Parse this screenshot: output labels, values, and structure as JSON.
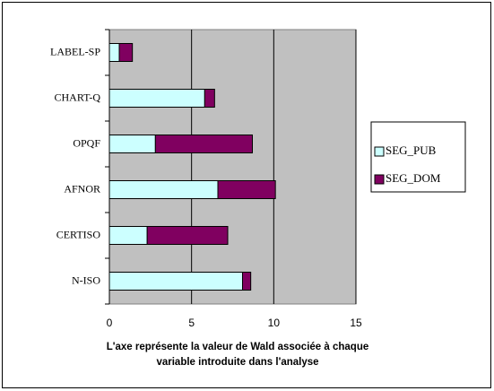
{
  "chart_data": {
    "type": "stacked-barh",
    "categories": [
      "LABEL-SP",
      "CHART-Q",
      "OPQF",
      "AFNOR",
      "CERTISO",
      "N-ISO"
    ],
    "series": [
      {
        "name": "SEG_PUB",
        "color": "#ccffff",
        "values": [
          0.6,
          5.8,
          2.8,
          6.6,
          2.3,
          8.1
        ]
      },
      {
        "name": "SEG_DOM",
        "color": "#800060",
        "values": [
          0.8,
          0.6,
          5.9,
          3.5,
          4.9,
          0.5
        ]
      }
    ],
    "xlim": [
      0,
      15
    ],
    "xticks": [
      0,
      5,
      10,
      15
    ],
    "grid": true,
    "xlabel": [
      "L'axe représente la valeur de Wald associée à chaque",
      "variable introduite dans l'analyse"
    ],
    "legend": "right"
  }
}
